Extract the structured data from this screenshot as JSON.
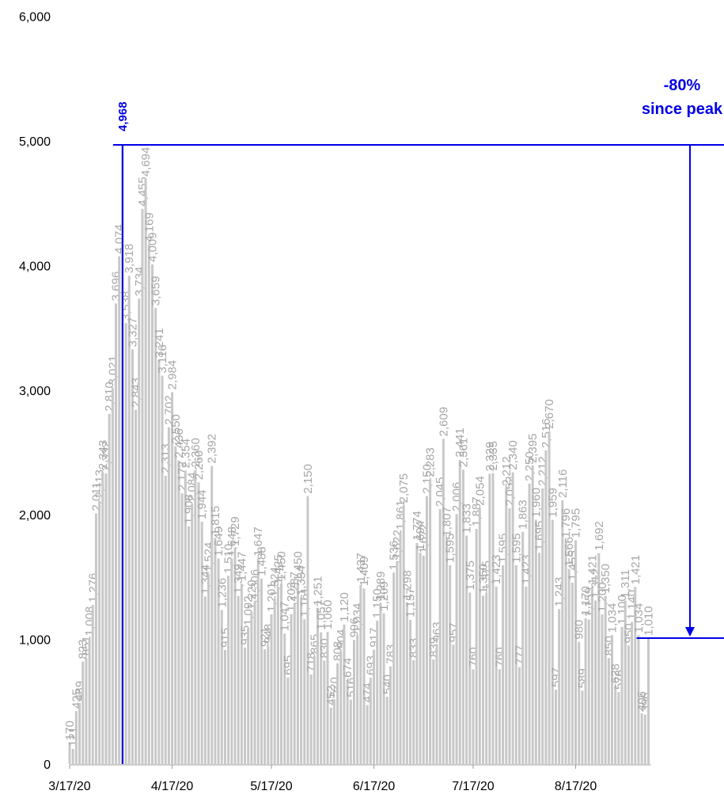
{
  "chart_data": {
    "type": "bar",
    "categories": [
      "3/17/20",
      null,
      null,
      null,
      null,
      null,
      null,
      null,
      null,
      null,
      null,
      null,
      null,
      null,
      null,
      null,
      null,
      null,
      null,
      null,
      null,
      null,
      null,
      null,
      null,
      null,
      null,
      null,
      null,
      null,
      null,
      "4/17/20",
      null,
      null,
      null,
      null,
      null,
      null,
      null,
      null,
      null,
      null,
      null,
      null,
      null,
      null,
      null,
      null,
      null,
      null,
      null,
      null,
      null,
      null,
      null,
      null,
      null,
      null,
      null,
      null,
      null,
      "5/17/20",
      null,
      null,
      null,
      null,
      null,
      null,
      null,
      null,
      null,
      null,
      null,
      null,
      null,
      null,
      null,
      null,
      null,
      null,
      null,
      null,
      null,
      null,
      null,
      null,
      null,
      null,
      null,
      null,
      null,
      null,
      "6/17/20",
      null,
      null,
      null,
      null,
      null,
      null,
      null,
      null,
      null,
      null,
      null,
      null,
      null,
      null,
      null,
      null,
      null,
      null,
      null,
      null,
      null,
      null,
      null,
      null,
      null,
      null,
      null,
      null,
      null,
      "7/17/20",
      null,
      null,
      null,
      null,
      null,
      null,
      null,
      null,
      null,
      null,
      null,
      null,
      null,
      null,
      null,
      null,
      null,
      null,
      null,
      null,
      null,
      null,
      null,
      null,
      null,
      null,
      null,
      null,
      null,
      null,
      "8/17/20",
      null,
      null,
      null,
      null,
      null,
      null,
      null,
      null,
      null,
      null,
      null,
      null,
      null,
      null,
      null,
      null,
      null,
      null,
      null,
      null,
      null,
      null
    ],
    "values": [
      170,
      121,
      425,
      489,
      823,
      851,
      1008,
      1276,
      2011,
      2113,
      2343,
      2332,
      2810,
      3021,
      3696,
      4074,
      4968,
      3538,
      3918,
      3327,
      2843,
      3734,
      4455,
      4694,
      4169,
      4009,
      3659,
      3241,
      3116,
      2313,
      2702,
      2984,
      2550,
      2436,
      2172,
      2354,
      1908,
      2084,
      2360,
      2260,
      1944,
      1344,
      1524,
      2392,
      1815,
      1649,
      1236,
      915,
      1510,
      1648,
      1729,
      1349,
      1447,
      935,
      1092,
      1220,
      1306,
      1647,
      1488,
      921,
      948,
      1201,
      1324,
      1425,
      1450,
      1047,
      695,
      1203,
      1287,
      1450,
      1334,
      1161,
      2150,
      718,
      865,
      1251,
      1057,
      830,
      1060,
      452,
      520,
      808,
      904,
      1120,
      674,
      516,
      996,
      1034,
      1437,
      1409,
      474,
      693,
      917,
      1150,
      1289,
      1209,
      540,
      783,
      1536,
      1622,
      1861,
      2075,
      1298,
      1157,
      833,
      1774,
      1694,
      1672,
      2150,
      2283,
      839,
      963,
      2045,
      2609,
      1807,
      1595,
      957,
      2006,
      2441,
      2361,
      1833,
      1375,
      760,
      1887,
      2054,
      1350,
      1375,
      2329,
      2335,
      1423,
      760,
      1595,
      2212,
      2052,
      2340,
      1595,
      777,
      1863,
      1423,
      2250,
      2395,
      1960,
      1695,
      2212,
      2516,
      2670,
      1959,
      597,
      1243,
      2116,
      1796,
      1566,
      1455,
      1795,
      980,
      589,
      1170,
      1159,
      1421,
      1312,
      1692,
      1200,
      1350,
      850,
      1034,
      628,
      578,
      1100,
      1311,
      950,
      1140,
      1421,
      1034,
      406,
      396,
      1010
    ],
    "value_labels": [
      "170",
      "121",
      "425",
      "489",
      "823",
      "851",
      "1,008",
      "1,276",
      "2,011",
      "2,113",
      "2,343",
      "2,332",
      "2,810",
      "3,021",
      "3,696",
      "4,074",
      "4,968",
      "3,538",
      "3,918",
      "3,327",
      "2,843",
      "3,734",
      "4,455",
      "4,694",
      "4,169",
      "4,009",
      "3,659",
      "3,241",
      "3,116",
      "2,313",
      "2,702",
      "2,984",
      "2,550",
      "2,436",
      "2,172",
      "2,354",
      "1,908",
      "2,084",
      "2,360",
      "2,260",
      "1,944",
      "1,344",
      "1,524",
      "2,392",
      "1,815",
      "1,649",
      "1,236",
      "915",
      "1,510",
      "1,648",
      "1,729",
      "1,349",
      "1,447",
      "935",
      "1,092",
      "1,220",
      "1,306",
      "1,647",
      "1,488",
      "921",
      "948",
      "1,201",
      "1,324",
      "1,425",
      "1,450",
      "1,047",
      "695",
      "1,203",
      "1,287",
      "1,450",
      "1,334",
      "1,161",
      "2,150",
      "718",
      "865",
      "1,251",
      "1,057",
      "830",
      "1,060",
      "452",
      "520",
      "808",
      "904",
      "1,120",
      "674",
      "516",
      "996",
      "1,034",
      "1,437",
      "1,409",
      "474",
      "693",
      "917",
      "1,150",
      "1,289",
      "1,209",
      "540",
      "783",
      "1,536",
      "1,622",
      "1,861",
      "2,075",
      "1,298",
      "1,157",
      "833",
      "1,774",
      "1,694",
      "1,672",
      "2,150",
      "2,283",
      "839",
      "963",
      "2,045",
      "2,609",
      "1,807",
      "1,595",
      "957",
      "2,006",
      "2,441",
      "2,361",
      "1,833",
      "1,375",
      "760",
      "1,887",
      "2,054",
      "1,350",
      "1,375",
      "2,329",
      "2,335",
      "1,423",
      "760",
      "1,595",
      "2,212",
      "2,052",
      "2,340",
      "1,595",
      "777",
      "1,863",
      "1,423",
      "2,250",
      "2,395",
      "1,960",
      "1,695",
      "2,212",
      "2,516",
      "2,670",
      "1,959",
      "597",
      "1,243",
      "2,116",
      "1,796",
      "1,566",
      "1,455",
      "1,795",
      "980",
      "589",
      "1,170",
      "1,159",
      "1,421",
      "1,312",
      "1,692",
      "1,200",
      "1,350",
      "850",
      "1,034",
      "628",
      "578",
      "1,100",
      "1,311",
      "950",
      "1,140",
      "1,421",
      "1,034",
      "406",
      "396",
      "1,010"
    ],
    "color": "#c8c8c8",
    "label_color": "#a6a6a6",
    "highlight_color": "#0000e6",
    "ylim": [
      0,
      6000
    ],
    "yticks": [
      0,
      {
        "value": 1000,
        "label": "1,000"
      },
      {
        "value": 2000,
        "label": "2,000"
      },
      {
        "value": 3000,
        "label": "3,000"
      },
      {
        "value": 4000,
        "label": "4,000"
      },
      {
        "value": 5000,
        "label": "5,000"
      },
      {
        "value": 6000,
        "label": "6,000"
      }
    ],
    "grid": false,
    "annotation": [
      "-80%",
      "since peak"
    ]
  }
}
